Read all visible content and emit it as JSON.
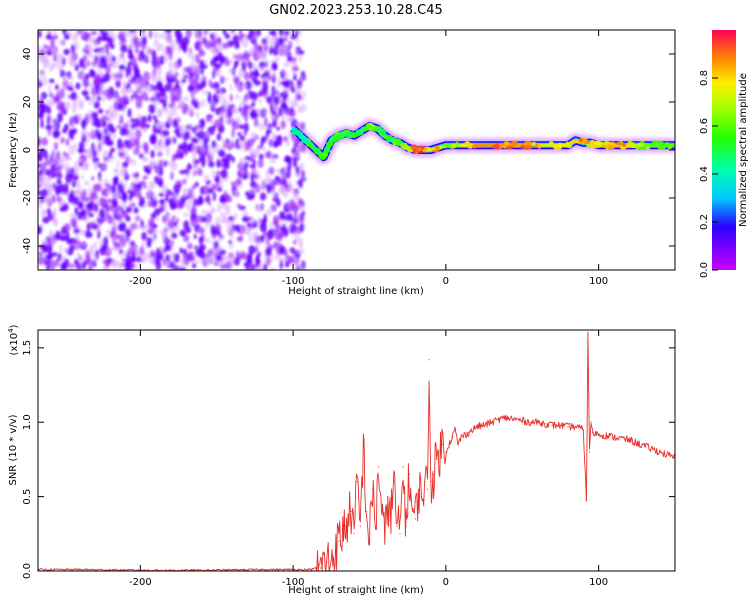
{
  "title": "GN02.2023.253.10.28.C45",
  "chart_data": [
    {
      "type": "heatmap",
      "xlabel": "Height of straight line (km)",
      "ylabel": "Frequency (Hz)",
      "xlim": [
        -267,
        150
      ],
      "ylim": [
        -50,
        50
      ],
      "xticks": [
        -200,
        -100,
        0,
        100
      ],
      "yticks": [
        -40,
        -20,
        0,
        20,
        40
      ],
      "grid": false,
      "noise_region_x": [
        -267,
        -93
      ],
      "signal_track": {
        "x": [
          -100,
          -95,
          -90,
          -85,
          -80,
          -75,
          -70,
          -65,
          -60,
          -55,
          -50,
          -45,
          -40,
          -35,
          -30,
          -25,
          -20,
          -15,
          -10,
          -5,
          0,
          10,
          20,
          40,
          60,
          80,
          85,
          90,
          95,
          100,
          110,
          120,
          130,
          140,
          150
        ],
        "freq": [
          9,
          6,
          3,
          0,
          -3,
          4,
          6,
          7,
          6,
          8,
          10,
          9,
          6,
          4,
          3,
          1,
          0,
          0,
          0,
          1,
          2,
          2,
          2,
          2,
          2,
          2,
          4,
          3,
          3,
          2,
          2,
          2,
          2,
          2,
          2
        ],
        "amp": [
          0.4,
          0.45,
          0.5,
          0.5,
          0.55,
          0.5,
          0.55,
          0.5,
          0.55,
          0.5,
          0.6,
          0.55,
          0.5,
          0.55,
          0.6,
          0.75,
          0.9,
          0.9,
          0.75,
          0.8,
          0.6,
          0.7,
          0.85,
          0.9,
          0.8,
          0.7,
          0.9,
          0.85,
          0.8,
          0.75,
          0.85,
          0.8,
          0.65,
          0.6,
          0.6
        ]
      },
      "colorbar": {
        "label": "Normalized spectral amplitude",
        "range": [
          0.0,
          1.0
        ],
        "ticks": [
          0.0,
          0.2,
          0.4,
          0.6,
          0.8
        ]
      }
    },
    {
      "type": "line",
      "xlabel": "Height of straight line (km)",
      "ylabel": "SNR (10 * v/v)",
      "y_multiplier_label": "(x10",
      "y_multiplier_exp": "4",
      "y_multiplier_close": ")",
      "xlim": [
        -267,
        150
      ],
      "ylim": [
        0.0,
        1.62
      ],
      "xticks": [
        -200,
        -100,
        0,
        100
      ],
      "yticks": [
        0.0,
        0.5,
        1.0,
        1.5
      ],
      "ytick_labels": [
        "0.0",
        "0.5",
        "1.0",
        "1.5"
      ],
      "grid": false,
      "series": [
        {
          "color": "#e8302a",
          "x": [
            -267,
            -240,
            -200,
            -160,
            -120,
            -100,
            -90,
            -82,
            -78,
            -74,
            -70,
            -66,
            -62,
            -60,
            -58,
            -56,
            -54,
            -52,
            -50,
            -48,
            -46,
            -44,
            -42,
            -40,
            -38,
            -36,
            -34,
            -32,
            -30,
            -28,
            -26,
            -24,
            -22,
            -20,
            -18,
            -16,
            -14,
            -12,
            -11,
            -10,
            -8,
            -6,
            -4,
            -2,
            0,
            2,
            4,
            6,
            8,
            10,
            15,
            20,
            25,
            30,
            35,
            40,
            45,
            50,
            55,
            60,
            65,
            70,
            75,
            80,
            85,
            90,
            92,
            93,
            94,
            95,
            96,
            100,
            110,
            120,
            130,
            140,
            150
          ],
          "y": [
            0.01,
            0.01,
            0.005,
            0.005,
            0.01,
            0.01,
            0.01,
            0.02,
            0.06,
            0.1,
            0.2,
            0.3,
            0.4,
            0.25,
            0.6,
            0.3,
            0.85,
            0.4,
            0.2,
            0.55,
            0.3,
            0.7,
            0.4,
            0.2,
            0.5,
            0.35,
            0.6,
            0.3,
            0.25,
            0.7,
            0.3,
            0.65,
            0.4,
            0.35,
            0.55,
            0.5,
            0.6,
            0.55,
            1.42,
            0.6,
            0.65,
            0.75,
            0.8,
            0.85,
            0.8,
            0.85,
            0.9,
            0.95,
            0.85,
            0.9,
            0.93,
            0.97,
            0.98,
            1.0,
            1.02,
            1.03,
            1.02,
            1.01,
            1.0,
            1.0,
            0.99,
            0.98,
            0.98,
            0.97,
            0.97,
            0.95,
            0.48,
            1.62,
            0.8,
            1.0,
            0.93,
            0.92,
            0.9,
            0.88,
            0.84,
            0.8,
            0.76
          ]
        }
      ]
    }
  ]
}
